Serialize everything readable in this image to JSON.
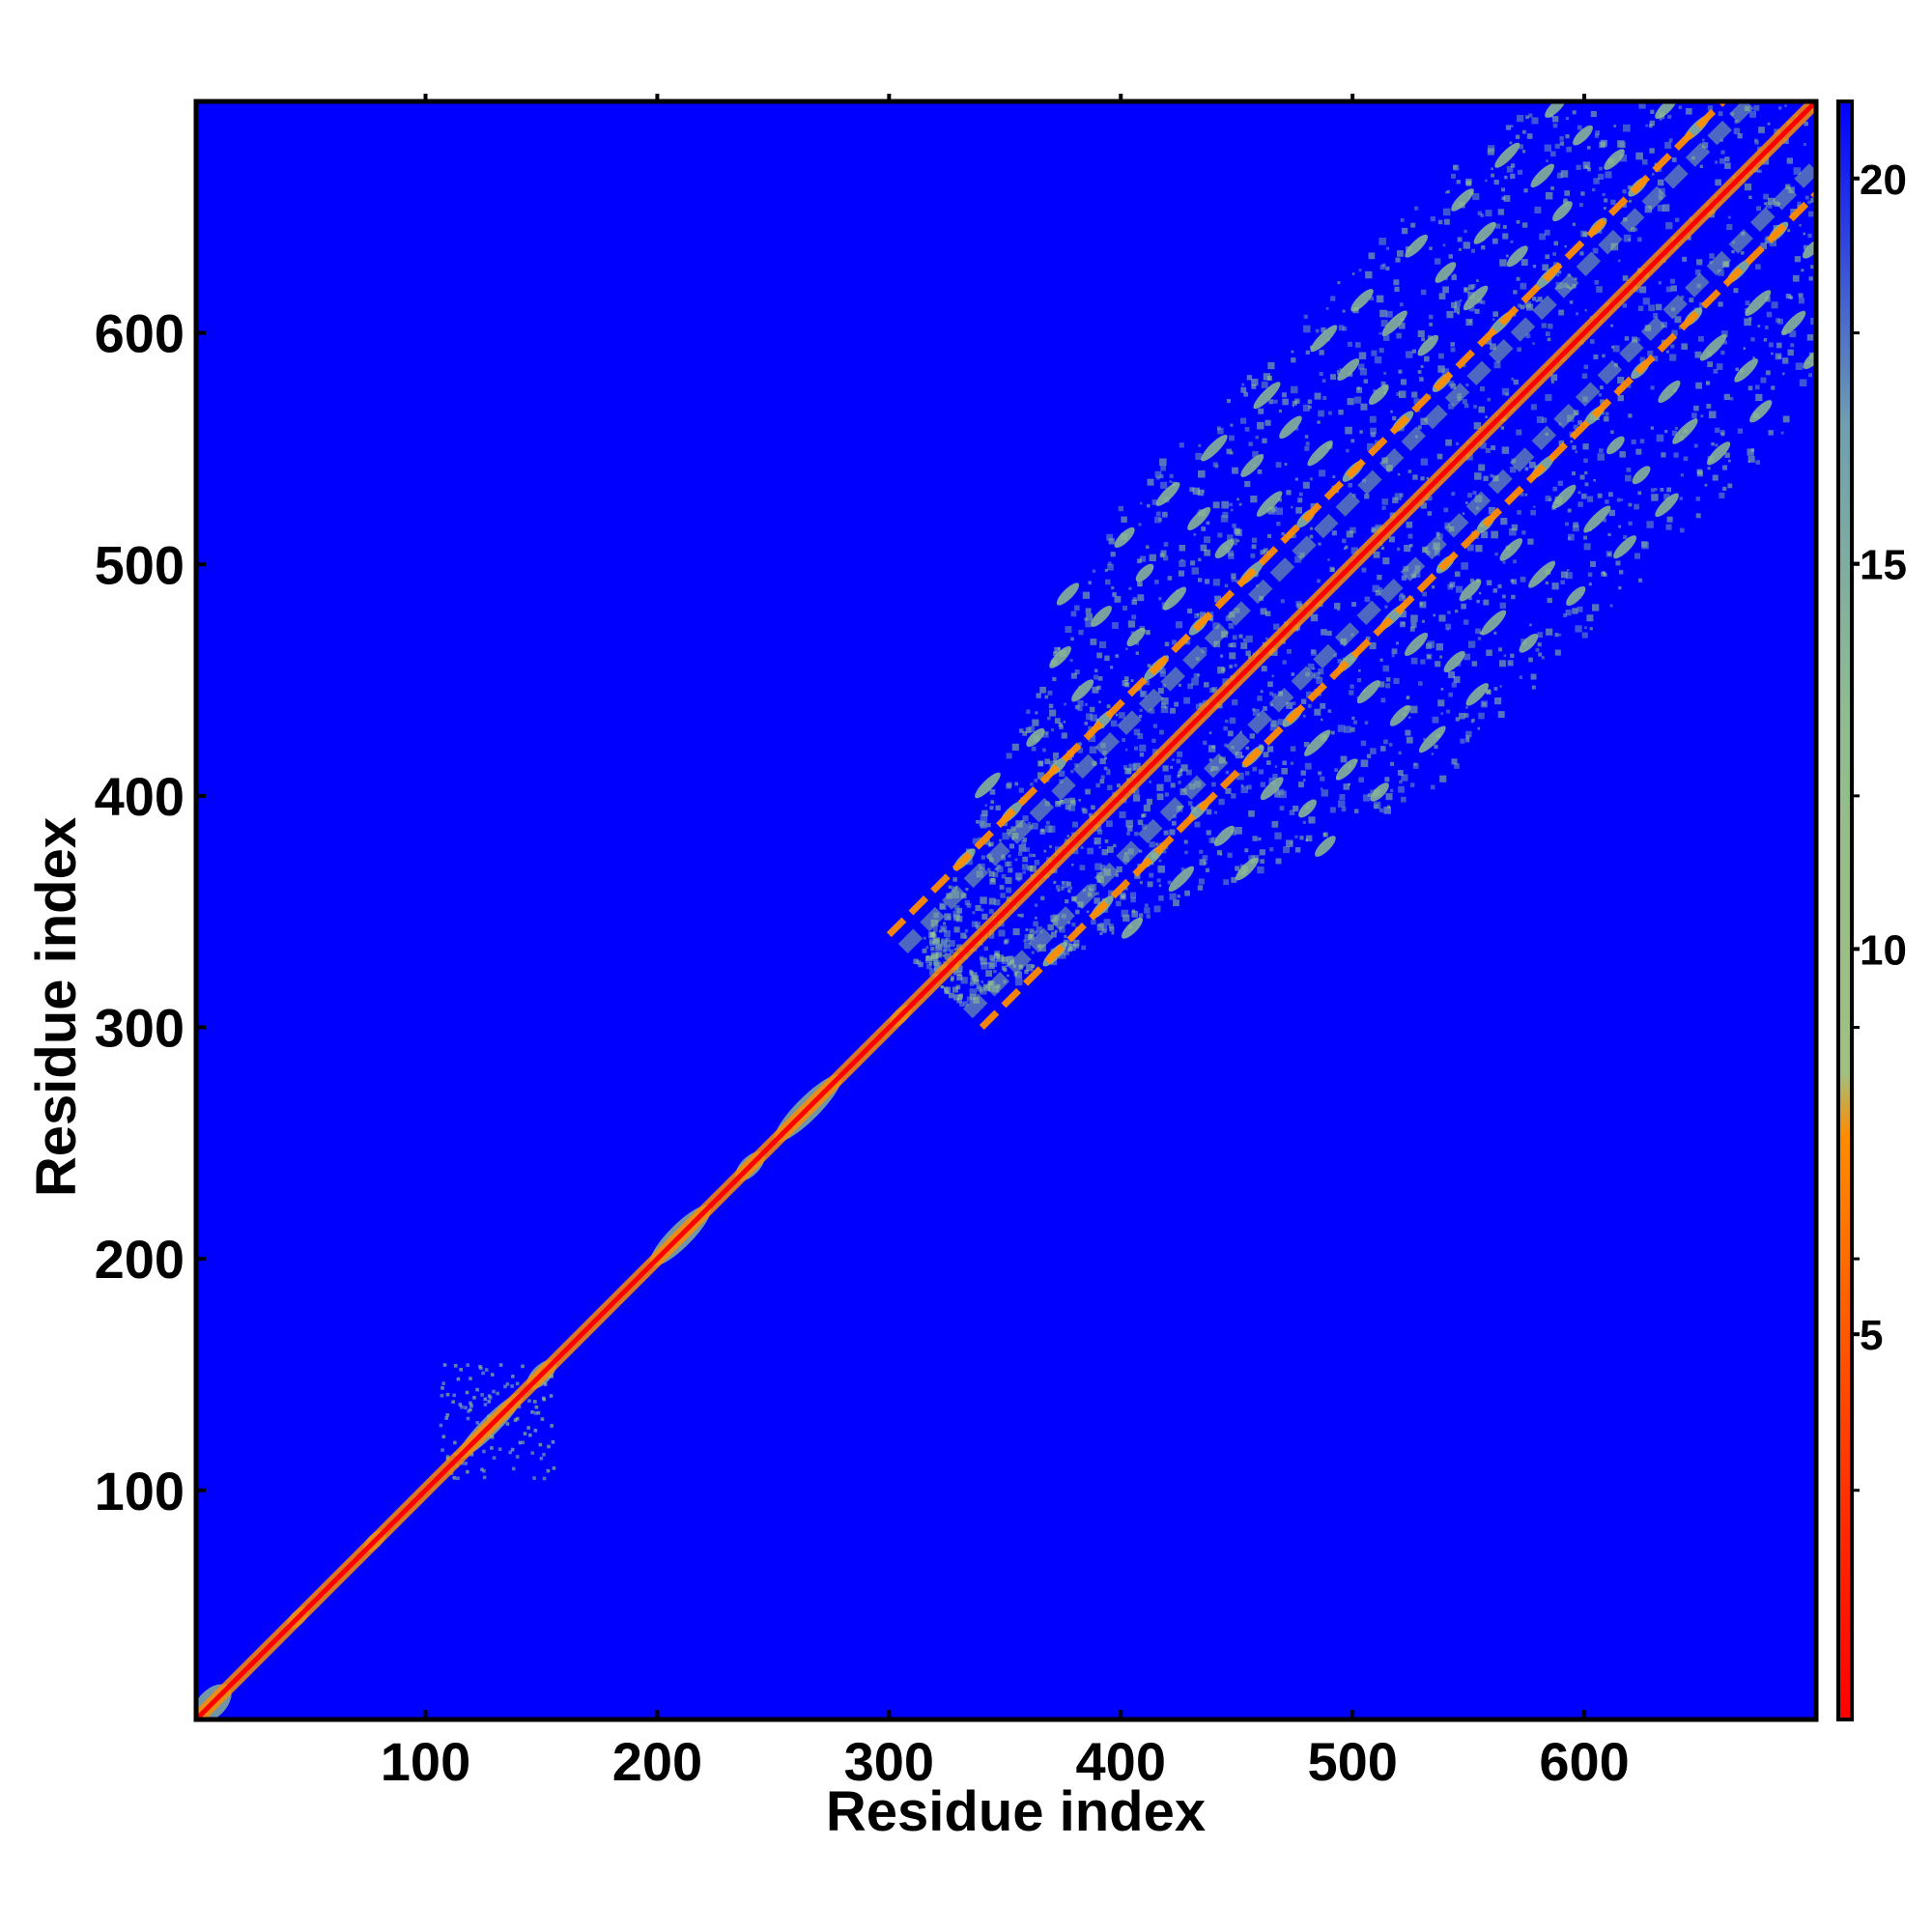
{
  "chart_data": {
    "type": "heatmap",
    "title": "",
    "xlabel": "Residue index",
    "ylabel": "Residue index",
    "xlim": [
      1,
      700
    ],
    "ylim": [
      1,
      700
    ],
    "x_ticks": [
      100,
      200,
      300,
      400,
      500,
      600
    ],
    "y_ticks": [
      100,
      200,
      300,
      400,
      500,
      600
    ],
    "colorbar": {
      "ticks": [
        5,
        10,
        15,
        20
      ],
      "range": [
        0,
        21
      ],
      "colors": [
        "#ff0000",
        "#ff8c00",
        "#8fbc8f",
        "#5a7fa0",
        "#0000ff"
      ]
    },
    "background_color": "#0000ff",
    "description_values": {
      "diagonal": {
        "from": 1,
        "to": 700
      },
      "dense_region_start": 320,
      "dense_region_end": 700
    }
  }
}
